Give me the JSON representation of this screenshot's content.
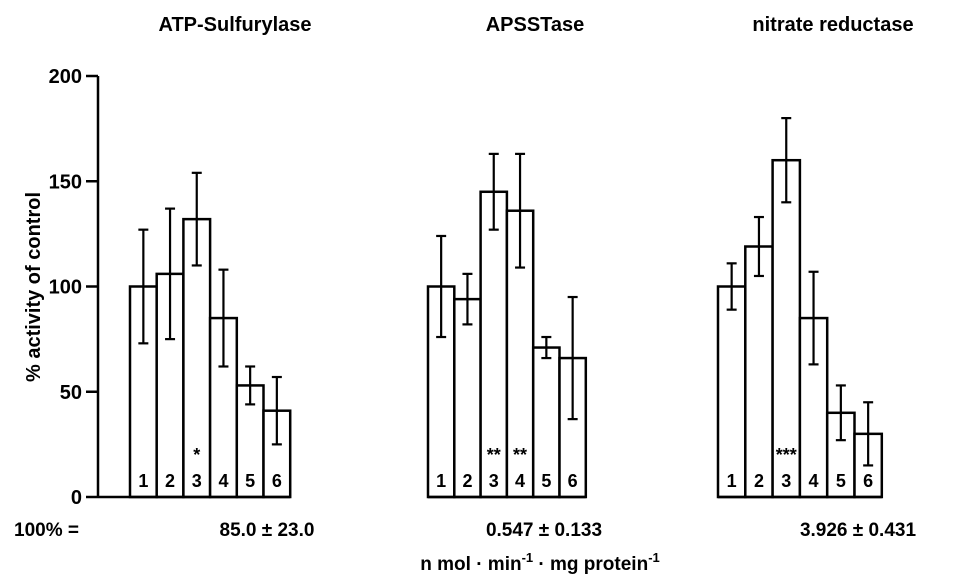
{
  "chart_data": {
    "type": "bar",
    "ylabel": "% activity of control",
    "ylim": [
      0,
      200
    ],
    "yticks": [
      0,
      50,
      100,
      150,
      200
    ],
    "grid": false,
    "reference_prefix": "100% =",
    "xlabel_parts": [
      "n mol",
      "min",
      "mg protein"
    ],
    "xlabel_superscript": "-1",
    "panels": [
      {
        "title": "ATP-Sulfurylase",
        "categories": [
          "1",
          "2",
          "3",
          "4",
          "5",
          "6"
        ],
        "values": [
          100,
          106,
          132,
          85,
          53,
          41
        ],
        "errors": [
          27,
          31,
          22,
          23,
          9,
          16
        ],
        "significance": [
          "",
          "",
          "*",
          "",
          "",
          ""
        ],
        "reference": "85.0 ± 23.0"
      },
      {
        "title": "APSSTase",
        "categories": [
          "1",
          "2",
          "3",
          "4",
          "5",
          "6"
        ],
        "values": [
          100,
          94,
          145,
          136,
          71,
          66
        ],
        "errors": [
          24,
          12,
          18,
          27,
          5,
          29
        ],
        "significance": [
          "",
          "",
          "**",
          "**",
          "",
          ""
        ],
        "reference": "0.547 ± 0.133"
      },
      {
        "title": "nitrate reductase",
        "categories": [
          "1",
          "2",
          "3",
          "4",
          "5",
          "6"
        ],
        "values": [
          100,
          119,
          160,
          85,
          40,
          30
        ],
        "errors": [
          11,
          14,
          20,
          22,
          13,
          15
        ],
        "significance": [
          "",
          "",
          "***",
          "",
          "",
          ""
        ],
        "reference": "3.926 ± 0.431"
      }
    ]
  }
}
